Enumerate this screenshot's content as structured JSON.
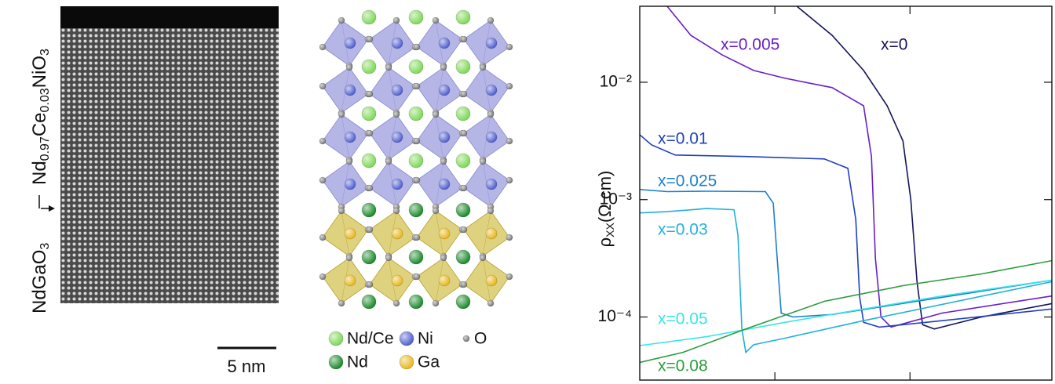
{
  "stem_panel": {
    "film_label": [
      "Nd",
      "0.97",
      "Ce",
      "0.03",
      "NiO",
      "3"
    ],
    "substrate_label": [
      "NdGaO",
      "3"
    ],
    "scale_bar": "5 nm"
  },
  "structure_panel": {
    "legend": [
      {
        "label": "Nd/Ce",
        "color": "#7ed957"
      },
      {
        "label": "Ni",
        "color": "#5060d0"
      },
      {
        "label": "O",
        "color": "#777777"
      },
      {
        "label": "Nd",
        "color": "#1a8a2a"
      },
      {
        "label": "Ga",
        "color": "#e8b820"
      }
    ]
  },
  "chart_data": {
    "type": "line",
    "ylabel": [
      "ρ",
      "XX",
      "(Ω cm)"
    ],
    "log_y": true,
    "xlim": [
      0,
      305
    ],
    "xticks": [
      100,
      200
    ],
    "ylim": [
      2.9e-05,
      0.0444
    ],
    "yticks": [
      {
        "value": 0.01,
        "label": "10⁻²"
      },
      {
        "value": 0.001,
        "label": "10⁻³"
      },
      {
        "value": 0.0001,
        "label": "10⁻⁴"
      }
    ],
    "series": [
      {
        "name": "x=0",
        "color": "#14145a",
        "x": [
          116.3,
          142.4,
          165.7,
          183.1,
          194.8,
          200.6,
          205.2,
          209.3,
          218,
          252.9,
          305
        ],
        "values": [
          0.0444,
          0.0251,
          0.0126,
          0.0063,
          0.00316,
          0.001,
          0.0002,
          8.6e-05,
          7.9e-05,
          0.0001,
          0.00013
        ]
      },
      {
        "name": "x=0.005",
        "color": "#6a1ec8",
        "x": [
          20.3,
          37.8,
          61,
          84.3,
          107.6,
          142.4,
          165.7,
          171.5,
          174.4,
          178.5,
          186,
          223.8,
          305
        ],
        "values": [
          0.0444,
          0.0251,
          0.0171,
          0.0126,
          0.0108,
          0.009,
          0.0063,
          0.00233,
          0.000316,
          0.0001,
          8.2e-05,
          0.000108,
          0.000151
        ]
      },
      {
        "name": "x=0.01",
        "color": "#2040c0",
        "x": [
          0,
          8.7,
          26.2,
          78.5,
          136.6,
          154,
          159.9,
          162.8,
          165.7,
          177.3,
          223.8,
          305
        ],
        "values": [
          0.00357,
          0.00293,
          0.0024,
          0.00233,
          0.00222,
          0.00185,
          0.00068,
          0.000147,
          9e-05,
          8.2e-05,
          9.3e-05,
          0.000117
        ]
      },
      {
        "name": "x=0.025",
        "color": "#1c7fd0",
        "x": [
          0,
          20.3,
          49.4,
          93,
          98.8,
          101.7,
          104.7,
          113.4,
          142.4,
          223.8,
          305
        ],
        "values": [
          0.00122,
          0.00117,
          0.00118,
          0.00117,
          0.00093,
          0.000316,
          0.000108,
          0.0001,
          0.000105,
          0.000147,
          0.000206
        ]
      },
      {
        "name": "x=0.03",
        "color": "#22b0dc",
        "x": [
          0,
          20.3,
          49.4,
          69.8,
          72.7,
          75.6,
          78.5,
          84.3,
          107.6,
          165.7,
          305
        ],
        "values": [
          0.00077,
          0.00079,
          0.00084,
          0.00082,
          0.0005,
          7.9e-05,
          5e-05,
          5.8e-05,
          6.6e-05,
          9.3e-05,
          0.0002
        ]
      },
      {
        "name": "x=0.05",
        "color": "#35e5ea",
        "x": [
          0,
          49.4,
          107.6,
          165.7,
          223.8,
          305
        ],
        "values": [
          5.7e-05,
          6.8e-05,
          9e-05,
          0.000117,
          0.000151,
          0.000206
        ]
      },
      {
        "name": "x=0.08",
        "color": "#2a9c3c",
        "x": [
          0,
          32,
          78.5,
          136.6,
          194.8,
          253,
          305
        ],
        "values": [
          4.1e-05,
          5e-05,
          7.9e-05,
          0.000136,
          0.000185,
          0.000233,
          0.000302
        ]
      }
    ]
  }
}
